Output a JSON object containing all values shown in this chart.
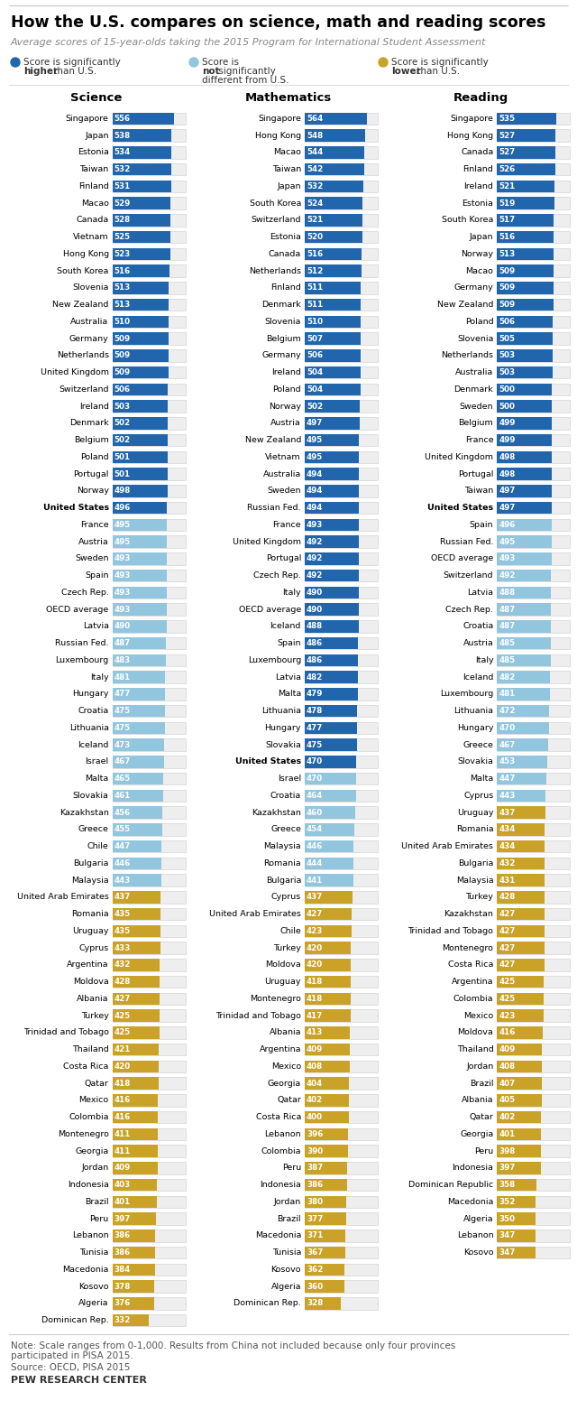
{
  "title": "How the U.S. compares on science, math and reading scores",
  "subtitle": "Average scores of 15-year-olds taking the 2015 Program for International Student Assessment",
  "color_high": "#2166ac",
  "color_same": "#92c5de",
  "color_low": "#c9a227",
  "science": [
    {
      "country": "Singapore",
      "score": 556,
      "cat": "high"
    },
    {
      "country": "Japan",
      "score": 538,
      "cat": "high"
    },
    {
      "country": "Estonia",
      "score": 534,
      "cat": "high"
    },
    {
      "country": "Taiwan",
      "score": 532,
      "cat": "high"
    },
    {
      "country": "Finland",
      "score": 531,
      "cat": "high"
    },
    {
      "country": "Macao",
      "score": 529,
      "cat": "high"
    },
    {
      "country": "Canada",
      "score": 528,
      "cat": "high"
    },
    {
      "country": "Vietnam",
      "score": 525,
      "cat": "high"
    },
    {
      "country": "Hong Kong",
      "score": 523,
      "cat": "high"
    },
    {
      "country": "South Korea",
      "score": 516,
      "cat": "high"
    },
    {
      "country": "Slovenia",
      "score": 513,
      "cat": "high"
    },
    {
      "country": "New Zealand",
      "score": 513,
      "cat": "high"
    },
    {
      "country": "Australia",
      "score": 510,
      "cat": "high"
    },
    {
      "country": "Germany",
      "score": 509,
      "cat": "high"
    },
    {
      "country": "Netherlands",
      "score": 509,
      "cat": "high"
    },
    {
      "country": "United Kingdom",
      "score": 509,
      "cat": "high"
    },
    {
      "country": "Switzerland",
      "score": 506,
      "cat": "high"
    },
    {
      "country": "Ireland",
      "score": 503,
      "cat": "high"
    },
    {
      "country": "Denmark",
      "score": 502,
      "cat": "high"
    },
    {
      "country": "Belgium",
      "score": 502,
      "cat": "high"
    },
    {
      "country": "Poland",
      "score": 501,
      "cat": "high"
    },
    {
      "country": "Portugal",
      "score": 501,
      "cat": "high"
    },
    {
      "country": "Norway",
      "score": 498,
      "cat": "high"
    },
    {
      "country": "United States",
      "score": 496,
      "cat": "us"
    },
    {
      "country": "France",
      "score": 495,
      "cat": "same"
    },
    {
      "country": "Austria",
      "score": 495,
      "cat": "same"
    },
    {
      "country": "Sweden",
      "score": 493,
      "cat": "same"
    },
    {
      "country": "Spain",
      "score": 493,
      "cat": "same"
    },
    {
      "country": "Czech Rep.",
      "score": 493,
      "cat": "same"
    },
    {
      "country": "OECD average",
      "score": 493,
      "cat": "same"
    },
    {
      "country": "Latvia",
      "score": 490,
      "cat": "same"
    },
    {
      "country": "Russian Fed.",
      "score": 487,
      "cat": "same"
    },
    {
      "country": "Luxembourg",
      "score": 483,
      "cat": "same"
    },
    {
      "country": "Italy",
      "score": 481,
      "cat": "same"
    },
    {
      "country": "Hungary",
      "score": 477,
      "cat": "same"
    },
    {
      "country": "Croatia",
      "score": 475,
      "cat": "same"
    },
    {
      "country": "Lithuania",
      "score": 475,
      "cat": "same"
    },
    {
      "country": "Iceland",
      "score": 473,
      "cat": "same"
    },
    {
      "country": "Israel",
      "score": 467,
      "cat": "same"
    },
    {
      "country": "Malta",
      "score": 465,
      "cat": "same"
    },
    {
      "country": "Slovakia",
      "score": 461,
      "cat": "same"
    },
    {
      "country": "Kazakhstan",
      "score": 456,
      "cat": "same"
    },
    {
      "country": "Greece",
      "score": 455,
      "cat": "same"
    },
    {
      "country": "Chile",
      "score": 447,
      "cat": "same"
    },
    {
      "country": "Bulgaria",
      "score": 446,
      "cat": "same"
    },
    {
      "country": "Malaysia",
      "score": 443,
      "cat": "same"
    },
    {
      "country": "United Arab Emirates",
      "score": 437,
      "cat": "low"
    },
    {
      "country": "Romania",
      "score": 435,
      "cat": "low"
    },
    {
      "country": "Uruguay",
      "score": 435,
      "cat": "low"
    },
    {
      "country": "Cyprus",
      "score": 433,
      "cat": "low"
    },
    {
      "country": "Argentina",
      "score": 432,
      "cat": "low"
    },
    {
      "country": "Moldova",
      "score": 428,
      "cat": "low"
    },
    {
      "country": "Albania",
      "score": 427,
      "cat": "low"
    },
    {
      "country": "Turkey",
      "score": 425,
      "cat": "low"
    },
    {
      "country": "Trinidad and Tobago",
      "score": 425,
      "cat": "low"
    },
    {
      "country": "Thailand",
      "score": 421,
      "cat": "low"
    },
    {
      "country": "Costa Rica",
      "score": 420,
      "cat": "low"
    },
    {
      "country": "Qatar",
      "score": 418,
      "cat": "low"
    },
    {
      "country": "Mexico",
      "score": 416,
      "cat": "low"
    },
    {
      "country": "Colombia",
      "score": 416,
      "cat": "low"
    },
    {
      "country": "Montenegro",
      "score": 411,
      "cat": "low"
    },
    {
      "country": "Georgia",
      "score": 411,
      "cat": "low"
    },
    {
      "country": "Jordan",
      "score": 409,
      "cat": "low"
    },
    {
      "country": "Indonesia",
      "score": 403,
      "cat": "low"
    },
    {
      "country": "Brazil",
      "score": 401,
      "cat": "low"
    },
    {
      "country": "Peru",
      "score": 397,
      "cat": "low"
    },
    {
      "country": "Lebanon",
      "score": 386,
      "cat": "low"
    },
    {
      "country": "Tunisia",
      "score": 386,
      "cat": "low"
    },
    {
      "country": "Macedonia",
      "score": 384,
      "cat": "low"
    },
    {
      "country": "Kosovo",
      "score": 378,
      "cat": "low"
    },
    {
      "country": "Algeria",
      "score": 376,
      "cat": "low"
    },
    {
      "country": "Dominican Rep.",
      "score": 332,
      "cat": "low"
    }
  ],
  "math": [
    {
      "country": "Singapore",
      "score": 564,
      "cat": "high"
    },
    {
      "country": "Hong Kong",
      "score": 548,
      "cat": "high"
    },
    {
      "country": "Macao",
      "score": 544,
      "cat": "high"
    },
    {
      "country": "Taiwan",
      "score": 542,
      "cat": "high"
    },
    {
      "country": "Japan",
      "score": 532,
      "cat": "high"
    },
    {
      "country": "South Korea",
      "score": 524,
      "cat": "high"
    },
    {
      "country": "Switzerland",
      "score": 521,
      "cat": "high"
    },
    {
      "country": "Estonia",
      "score": 520,
      "cat": "high"
    },
    {
      "country": "Canada",
      "score": 516,
      "cat": "high"
    },
    {
      "country": "Netherlands",
      "score": 512,
      "cat": "high"
    },
    {
      "country": "Finland",
      "score": 511,
      "cat": "high"
    },
    {
      "country": "Denmark",
      "score": 511,
      "cat": "high"
    },
    {
      "country": "Slovenia",
      "score": 510,
      "cat": "high"
    },
    {
      "country": "Belgium",
      "score": 507,
      "cat": "high"
    },
    {
      "country": "Germany",
      "score": 506,
      "cat": "high"
    },
    {
      "country": "Ireland",
      "score": 504,
      "cat": "high"
    },
    {
      "country": "Poland",
      "score": 504,
      "cat": "high"
    },
    {
      "country": "Norway",
      "score": 502,
      "cat": "high"
    },
    {
      "country": "Austria",
      "score": 497,
      "cat": "high"
    },
    {
      "country": "New Zealand",
      "score": 495,
      "cat": "high"
    },
    {
      "country": "Vietnam",
      "score": 495,
      "cat": "high"
    },
    {
      "country": "Australia",
      "score": 494,
      "cat": "high"
    },
    {
      "country": "Sweden",
      "score": 494,
      "cat": "high"
    },
    {
      "country": "Russian Fed.",
      "score": 494,
      "cat": "high"
    },
    {
      "country": "France",
      "score": 493,
      "cat": "high"
    },
    {
      "country": "United Kingdom",
      "score": 492,
      "cat": "high"
    },
    {
      "country": "Portugal",
      "score": 492,
      "cat": "high"
    },
    {
      "country": "Czech Rep.",
      "score": 492,
      "cat": "high"
    },
    {
      "country": "Italy",
      "score": 490,
      "cat": "high"
    },
    {
      "country": "OECD average",
      "score": 490,
      "cat": "high"
    },
    {
      "country": "Iceland",
      "score": 488,
      "cat": "high"
    },
    {
      "country": "Spain",
      "score": 486,
      "cat": "high"
    },
    {
      "country": "Luxembourg",
      "score": 486,
      "cat": "high"
    },
    {
      "country": "Latvia",
      "score": 482,
      "cat": "high"
    },
    {
      "country": "Malta",
      "score": 479,
      "cat": "high"
    },
    {
      "country": "Lithuania",
      "score": 478,
      "cat": "high"
    },
    {
      "country": "Hungary",
      "score": 477,
      "cat": "high"
    },
    {
      "country": "Slovakia",
      "score": 475,
      "cat": "high"
    },
    {
      "country": "United States",
      "score": 470,
      "cat": "us"
    },
    {
      "country": "Israel",
      "score": 470,
      "cat": "same"
    },
    {
      "country": "Croatia",
      "score": 464,
      "cat": "same"
    },
    {
      "country": "Kazakhstan",
      "score": 460,
      "cat": "same"
    },
    {
      "country": "Greece",
      "score": 454,
      "cat": "same"
    },
    {
      "country": "Malaysia",
      "score": 446,
      "cat": "same"
    },
    {
      "country": "Romania",
      "score": 444,
      "cat": "same"
    },
    {
      "country": "Bulgaria",
      "score": 441,
      "cat": "same"
    },
    {
      "country": "Cyprus",
      "score": 437,
      "cat": "low"
    },
    {
      "country": "United Arab Emirates",
      "score": 427,
      "cat": "low"
    },
    {
      "country": "Chile",
      "score": 423,
      "cat": "low"
    },
    {
      "country": "Turkey",
      "score": 420,
      "cat": "low"
    },
    {
      "country": "Moldova",
      "score": 420,
      "cat": "low"
    },
    {
      "country": "Uruguay",
      "score": 418,
      "cat": "low"
    },
    {
      "country": "Montenegro",
      "score": 418,
      "cat": "low"
    },
    {
      "country": "Trinidad and Tobago",
      "score": 417,
      "cat": "low"
    },
    {
      "country": "Albania",
      "score": 413,
      "cat": "low"
    },
    {
      "country": "Argentina",
      "score": 409,
      "cat": "low"
    },
    {
      "country": "Mexico",
      "score": 408,
      "cat": "low"
    },
    {
      "country": "Georgia",
      "score": 404,
      "cat": "low"
    },
    {
      "country": "Qatar",
      "score": 402,
      "cat": "low"
    },
    {
      "country": "Costa Rica",
      "score": 400,
      "cat": "low"
    },
    {
      "country": "Lebanon",
      "score": 396,
      "cat": "low"
    },
    {
      "country": "Colombia",
      "score": 390,
      "cat": "low"
    },
    {
      "country": "Peru",
      "score": 387,
      "cat": "low"
    },
    {
      "country": "Indonesia",
      "score": 386,
      "cat": "low"
    },
    {
      "country": "Jordan",
      "score": 380,
      "cat": "low"
    },
    {
      "country": "Brazil",
      "score": 377,
      "cat": "low"
    },
    {
      "country": "Macedonia",
      "score": 371,
      "cat": "low"
    },
    {
      "country": "Tunisia",
      "score": 367,
      "cat": "low"
    },
    {
      "country": "Kosovo",
      "score": 362,
      "cat": "low"
    },
    {
      "country": "Algeria",
      "score": 360,
      "cat": "low"
    },
    {
      "country": "Dominican Rep.",
      "score": 328,
      "cat": "low"
    }
  ],
  "reading": [
    {
      "country": "Singapore",
      "score": 535,
      "cat": "high"
    },
    {
      "country": "Hong Kong",
      "score": 527,
      "cat": "high"
    },
    {
      "country": "Canada",
      "score": 527,
      "cat": "high"
    },
    {
      "country": "Finland",
      "score": 526,
      "cat": "high"
    },
    {
      "country": "Ireland",
      "score": 521,
      "cat": "high"
    },
    {
      "country": "Estonia",
      "score": 519,
      "cat": "high"
    },
    {
      "country": "South Korea",
      "score": 517,
      "cat": "high"
    },
    {
      "country": "Japan",
      "score": 516,
      "cat": "high"
    },
    {
      "country": "Norway",
      "score": 513,
      "cat": "high"
    },
    {
      "country": "Macao",
      "score": 509,
      "cat": "high"
    },
    {
      "country": "Germany",
      "score": 509,
      "cat": "high"
    },
    {
      "country": "New Zealand",
      "score": 509,
      "cat": "high"
    },
    {
      "country": "Poland",
      "score": 506,
      "cat": "high"
    },
    {
      "country": "Slovenia",
      "score": 505,
      "cat": "high"
    },
    {
      "country": "Netherlands",
      "score": 503,
      "cat": "high"
    },
    {
      "country": "Australia",
      "score": 503,
      "cat": "high"
    },
    {
      "country": "Denmark",
      "score": 500,
      "cat": "high"
    },
    {
      "country": "Sweden",
      "score": 500,
      "cat": "high"
    },
    {
      "country": "Belgium",
      "score": 499,
      "cat": "high"
    },
    {
      "country": "France",
      "score": 499,
      "cat": "high"
    },
    {
      "country": "United Kingdom",
      "score": 498,
      "cat": "high"
    },
    {
      "country": "Portugal",
      "score": 498,
      "cat": "high"
    },
    {
      "country": "Taiwan",
      "score": 497,
      "cat": "high"
    },
    {
      "country": "United States",
      "score": 497,
      "cat": "us"
    },
    {
      "country": "Spain",
      "score": 496,
      "cat": "same"
    },
    {
      "country": "Russian Fed.",
      "score": 495,
      "cat": "same"
    },
    {
      "country": "OECD average",
      "score": 493,
      "cat": "same"
    },
    {
      "country": "Switzerland",
      "score": 492,
      "cat": "same"
    },
    {
      "country": "Latvia",
      "score": 488,
      "cat": "same"
    },
    {
      "country": "Czech Rep.",
      "score": 487,
      "cat": "same"
    },
    {
      "country": "Croatia",
      "score": 487,
      "cat": "same"
    },
    {
      "country": "Austria",
      "score": 485,
      "cat": "same"
    },
    {
      "country": "Italy",
      "score": 485,
      "cat": "same"
    },
    {
      "country": "Iceland",
      "score": 482,
      "cat": "same"
    },
    {
      "country": "Luxembourg",
      "score": 481,
      "cat": "same"
    },
    {
      "country": "Lithuania",
      "score": 472,
      "cat": "same"
    },
    {
      "country": "Hungary",
      "score": 470,
      "cat": "same"
    },
    {
      "country": "Greece",
      "score": 467,
      "cat": "same"
    },
    {
      "country": "Slovakia",
      "score": 453,
      "cat": "same"
    },
    {
      "country": "Malta",
      "score": 447,
      "cat": "same"
    },
    {
      "country": "Cyprus",
      "score": 443,
      "cat": "same"
    },
    {
      "country": "Uruguay",
      "score": 437,
      "cat": "low"
    },
    {
      "country": "Romania",
      "score": 434,
      "cat": "low"
    },
    {
      "country": "United Arab Emirates",
      "score": 434,
      "cat": "low"
    },
    {
      "country": "Bulgaria",
      "score": 432,
      "cat": "low"
    },
    {
      "country": "Malaysia",
      "score": 431,
      "cat": "low"
    },
    {
      "country": "Turkey",
      "score": 428,
      "cat": "low"
    },
    {
      "country": "Kazakhstan",
      "score": 427,
      "cat": "low"
    },
    {
      "country": "Trinidad and Tobago",
      "score": 427,
      "cat": "low"
    },
    {
      "country": "Montenegro",
      "score": 427,
      "cat": "low"
    },
    {
      "country": "Costa Rica",
      "score": 427,
      "cat": "low"
    },
    {
      "country": "Argentina",
      "score": 425,
      "cat": "low"
    },
    {
      "country": "Colombia",
      "score": 425,
      "cat": "low"
    },
    {
      "country": "Mexico",
      "score": 423,
      "cat": "low"
    },
    {
      "country": "Moldova",
      "score": 416,
      "cat": "low"
    },
    {
      "country": "Thailand",
      "score": 409,
      "cat": "low"
    },
    {
      "country": "Jordan",
      "score": 408,
      "cat": "low"
    },
    {
      "country": "Brazil",
      "score": 407,
      "cat": "low"
    },
    {
      "country": "Albania",
      "score": 405,
      "cat": "low"
    },
    {
      "country": "Qatar",
      "score": 402,
      "cat": "low"
    },
    {
      "country": "Georgia",
      "score": 401,
      "cat": "low"
    },
    {
      "country": "Peru",
      "score": 398,
      "cat": "low"
    },
    {
      "country": "Indonesia",
      "score": 397,
      "cat": "low"
    },
    {
      "country": "Dominican Republic",
      "score": 358,
      "cat": "low"
    },
    {
      "country": "Macedonia",
      "score": 352,
      "cat": "low"
    },
    {
      "country": "Algeria",
      "score": 350,
      "cat": "low"
    },
    {
      "country": "Lebanon",
      "score": 347,
      "cat": "low"
    },
    {
      "country": "Kosovo",
      "score": 347,
      "cat": "low"
    }
  ],
  "note": "Note: Scale ranges from 0-1,000. Results from China not included because only four provinces participated in PISA 2015.",
  "source": "Source: OECD, PISA 2015",
  "credit": "PEW RESEARCH CENTER"
}
